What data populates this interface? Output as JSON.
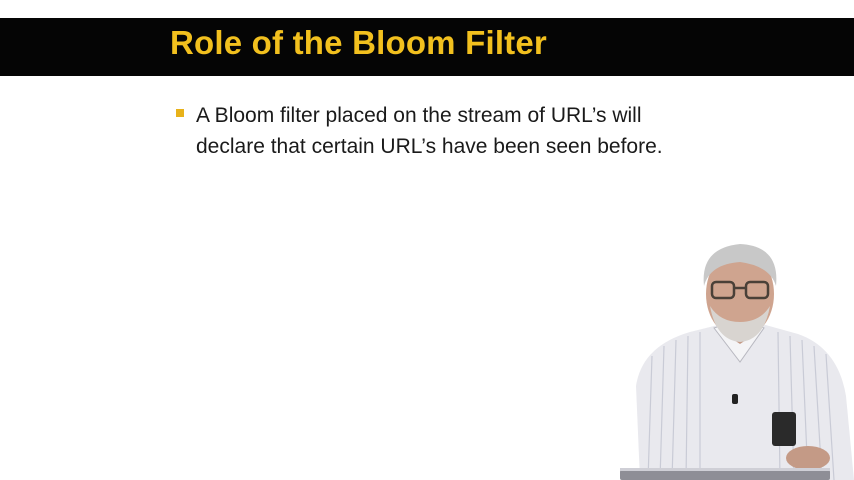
{
  "slide": {
    "title": "Role of the Bloom Filter",
    "bullets": [
      {
        "text": "A Bloom filter placed on the stream of URL’s will declare that certain URL’s have been seen before."
      }
    ]
  },
  "colors": {
    "title_bar": "#050505",
    "title_text": "#f2c01e",
    "bullet_marker": "#e8b21a",
    "body_text": "#1a1a1a"
  },
  "presenter": {
    "icon": "speaker-video-overlay"
  }
}
